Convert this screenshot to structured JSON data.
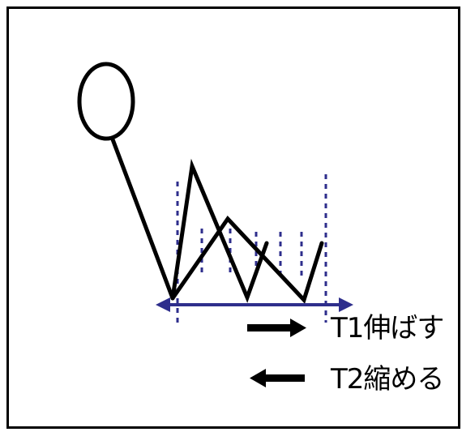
{
  "legend": [
    {
      "direction": "right",
      "label": "T1伸ばす"
    },
    {
      "direction": "left",
      "label": "T2縮める"
    }
  ],
  "colors": {
    "frame": "#000000",
    "figure": "#000000",
    "guide": "#2e2e8c",
    "arrow": "#2e2e8c",
    "background": "#ffffff"
  },
  "icons": {
    "head": "circle-head-icon",
    "extend_arrow": "arrow-right-icon",
    "shrink_arrow": "arrow-left-icon"
  }
}
